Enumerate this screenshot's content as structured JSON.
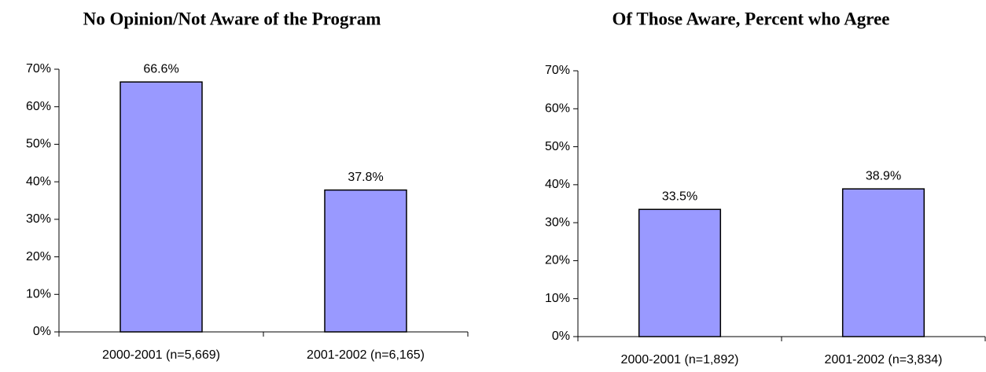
{
  "chart_data": [
    {
      "type": "bar",
      "title": "No Opinion/Not Aware of the Program",
      "categories": [
        "2000-2001 (n=5,669)",
        "2001-2002 (n=6,165)"
      ],
      "values": [
        66.6,
        37.8
      ],
      "value_labels": [
        "66.6%",
        "37.8%"
      ],
      "color": "#9999ff",
      "ylim": [
        0,
        70
      ],
      "yticks": [
        {
          "value": 0,
          "label": "0%"
        },
        {
          "value": 10,
          "label": "10%"
        },
        {
          "value": 20,
          "label": "20%"
        },
        {
          "value": 30,
          "label": "30%"
        },
        {
          "value": 40,
          "label": "40%"
        },
        {
          "value": 50,
          "label": "50%"
        },
        {
          "value": 60,
          "label": "60%"
        },
        {
          "value": 70,
          "label": "70%"
        }
      ],
      "grid": false
    },
    {
      "type": "bar",
      "title": "Of Those Aware, Percent who Agree",
      "categories": [
        "2000-2001 (n=1,892)",
        "2001-2002 (n=3,834)"
      ],
      "values": [
        33.5,
        38.9
      ],
      "value_labels": [
        "33.5%",
        "38.9%"
      ],
      "color": "#9999ff",
      "ylim": [
        0,
        70
      ],
      "yticks": [
        {
          "value": 0,
          "label": "0%"
        },
        {
          "value": 10,
          "label": "10%"
        },
        {
          "value": 20,
          "label": "20%"
        },
        {
          "value": 30,
          "label": "30%"
        },
        {
          "value": 40,
          "label": "40%"
        },
        {
          "value": 50,
          "label": "50%"
        },
        {
          "value": 60,
          "label": "60%"
        },
        {
          "value": 70,
          "label": "70%"
        }
      ],
      "grid": false
    }
  ]
}
